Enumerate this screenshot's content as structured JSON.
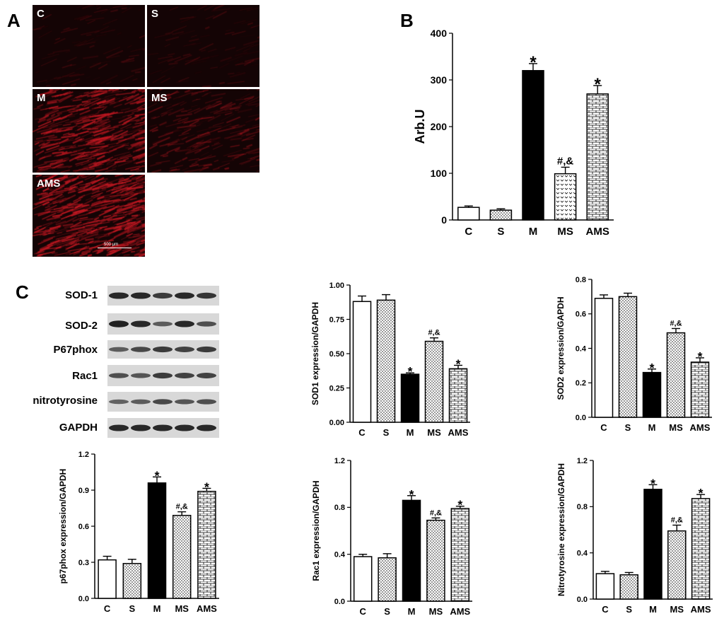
{
  "panels": {
    "a": "A",
    "b": "B",
    "c": "C"
  },
  "micrographs": {
    "tiles": [
      {
        "label": "C",
        "intensity": 0.05
      },
      {
        "label": "S",
        "intensity": 0.05
      },
      {
        "label": "M",
        "intensity": 0.75
      },
      {
        "label": "MS",
        "intensity": 0.3
      },
      {
        "label": "AMS",
        "intensity": 0.9
      }
    ],
    "scale_bar_text": "500 µm"
  },
  "western_blot": {
    "rows": [
      {
        "label": "SOD-1",
        "bands": [
          0.85,
          0.85,
          0.7,
          0.85,
          0.75
        ]
      },
      {
        "label": "SOD-2",
        "bands": [
          0.9,
          0.85,
          0.45,
          0.85,
          0.55
        ]
      },
      {
        "label": "P67phox",
        "bands": [
          0.45,
          0.6,
          0.7,
          0.65,
          0.7
        ]
      },
      {
        "label": "Rac1",
        "bands": [
          0.55,
          0.5,
          0.7,
          0.65,
          0.65
        ]
      },
      {
        "label": "nitrotyrosine",
        "bands": [
          0.4,
          0.45,
          0.6,
          0.5,
          0.55
        ]
      },
      {
        "label": "GAPDH",
        "bands": [
          0.85,
          0.85,
          0.85,
          0.85,
          0.85
        ]
      }
    ]
  },
  "chart_data": [
    {
      "id": "B",
      "type": "bar",
      "categories": [
        "C",
        "S",
        "M",
        "MS",
        "AMS"
      ],
      "values": [
        27,
        21,
        320,
        99,
        270
      ],
      "errors": [
        3,
        3,
        15,
        14,
        18
      ],
      "annotations": [
        "",
        "",
        "*",
        "#,&",
        "*"
      ],
      "patterns": [
        "white",
        "dots",
        "black",
        "hearts",
        "bricks"
      ],
      "ylabel": "Arb.U",
      "ylim": [
        0,
        400
      ],
      "yticks": [
        "0",
        "100",
        "200",
        "300",
        "400"
      ]
    },
    {
      "id": "SOD1",
      "type": "bar",
      "categories": [
        "C",
        "S",
        "M",
        "MS",
        "AMS"
      ],
      "values": [
        0.88,
        0.89,
        0.35,
        0.59,
        0.39
      ],
      "errors": [
        0.04,
        0.04,
        0.01,
        0.025,
        0.025
      ],
      "annotations": [
        "",
        "",
        "*",
        "#,&",
        "*"
      ],
      "patterns": [
        "white",
        "dots",
        "black",
        "dots",
        "bricks"
      ],
      "ylabel": "SOD1 expression/GAPDH",
      "ylim": [
        0,
        1
      ],
      "yticks": [
        "0.00",
        "0.25",
        "0.50",
        "0.75",
        "1.00"
      ]
    },
    {
      "id": "SOD2",
      "type": "bar",
      "categories": [
        "C",
        "S",
        "M",
        "MS",
        "AMS"
      ],
      "values": [
        0.69,
        0.7,
        0.26,
        0.49,
        0.32
      ],
      "errors": [
        0.02,
        0.02,
        0.02,
        0.025,
        0.025
      ],
      "annotations": [
        "",
        "",
        "*",
        "#,&",
        "*"
      ],
      "patterns": [
        "white",
        "dots",
        "black",
        "dots",
        "bricks"
      ],
      "ylabel": "SOD2 expression/GAPDH",
      "ylim": [
        0,
        0.8
      ],
      "yticks": [
        "0.0",
        "0.2",
        "0.4",
        "0.6",
        "0.8"
      ]
    },
    {
      "id": "p67",
      "type": "bar",
      "categories": [
        "C",
        "S",
        "M",
        "MS",
        "AMS"
      ],
      "values": [
        0.32,
        0.29,
        0.96,
        0.69,
        0.89
      ],
      "errors": [
        0.03,
        0.035,
        0.05,
        0.03,
        0.025
      ],
      "annotations": [
        "",
        "",
        "*",
        "#,&",
        "*"
      ],
      "patterns": [
        "white",
        "dots",
        "black",
        "dots",
        "bricks"
      ],
      "ylabel": "p67phox expression/GAPDH",
      "ylim": [
        0,
        1.2
      ],
      "yticks": [
        "0.0",
        "0.3",
        "0.6",
        "0.9",
        "1.2"
      ]
    },
    {
      "id": "Rac1",
      "type": "bar",
      "categories": [
        "C",
        "S",
        "M",
        "MS",
        "AMS"
      ],
      "values": [
        0.38,
        0.37,
        0.86,
        0.69,
        0.79
      ],
      "errors": [
        0.02,
        0.035,
        0.04,
        0.02,
        0.02
      ],
      "annotations": [
        "",
        "",
        "*",
        "#,&",
        "*"
      ],
      "patterns": [
        "white",
        "dots",
        "black",
        "dots",
        "bricks"
      ],
      "ylabel": "Rac1 expression/GAPDH",
      "ylim": [
        0,
        1.2
      ],
      "yticks": [
        "0.0",
        "0.4",
        "0.8",
        "1.2"
      ]
    },
    {
      "id": "Nitro",
      "type": "bar",
      "categories": [
        "C",
        "S",
        "M",
        "MS",
        "AMS"
      ],
      "values": [
        0.22,
        0.21,
        0.95,
        0.59,
        0.87
      ],
      "errors": [
        0.02,
        0.02,
        0.04,
        0.05,
        0.035
      ],
      "annotations": [
        "",
        "",
        "*",
        "#,&",
        "*"
      ],
      "patterns": [
        "white",
        "dots",
        "black",
        "dots",
        "bricks"
      ],
      "ylabel": "Nitrotyrosine expression/GAPDH",
      "ylim": [
        0,
        1.2
      ],
      "yticks": [
        "0.0",
        "0.4",
        "0.8",
        "1.2"
      ]
    }
  ]
}
